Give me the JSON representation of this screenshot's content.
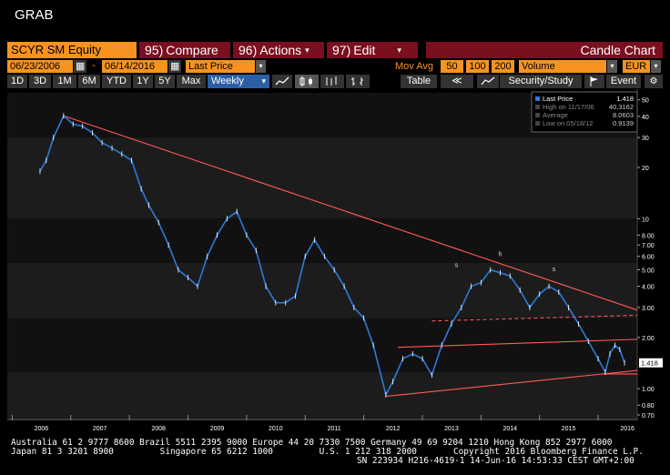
{
  "window": {
    "title": "GRAB"
  },
  "toolbar": {
    "ticker": "SCYR SM Equity",
    "compare": {
      "num": "95)",
      "label": "Compare"
    },
    "actions": {
      "num": "96)",
      "label": "Actions"
    },
    "edit": {
      "num": "97)",
      "label": "Edit"
    },
    "chart_title": "Candle Chart"
  },
  "settings": {
    "start_date": "06/23/2006",
    "end_date": "06/14/2016",
    "price_field": "Last Price",
    "mov_avg_label": "Mov Avg",
    "mov_avg": [
      "50",
      "100",
      "200"
    ],
    "volume": "Volume",
    "currency": "EUR"
  },
  "periods": [
    "1D",
    "3D",
    "1M",
    "6M",
    "YTD",
    "1Y",
    "5Y",
    "Max"
  ],
  "frequency": "Weekly",
  "tools": {
    "table": "Table",
    "security_study": "Security/Study",
    "event": "Event"
  },
  "legend": {
    "last_label": "Last Price",
    "last_value": "1.418",
    "high_label": "High on 11/17/06",
    "high_value": "40.3162",
    "avg_label": "Average",
    "avg_value": "8.0603",
    "low_label": "Low on 05/18/12",
    "low_value": "0.9139"
  },
  "chart_data": {
    "type": "line",
    "x_scale": "date",
    "y_scale": "log",
    "ylim": [
      0.65,
      55
    ],
    "xlim": [
      "2005-12-01",
      "2016-09-01"
    ],
    "yticks": [
      50,
      40,
      30,
      20,
      10,
      8.0,
      7.0,
      6.0,
      5.0,
      4.0,
      3.0,
      2.0,
      1.0,
      0.8,
      0.7
    ],
    "ytick_labels": [
      "50",
      "40",
      "30",
      "20",
      "10",
      "8.00",
      "7.00",
      "6.00",
      "5.00",
      "4.00",
      "3.00",
      "2.00",
      "1.00",
      "0.80",
      "0.70"
    ],
    "xtick_labels": [
      "2006",
      "2007",
      "2008",
      "2009",
      "2010",
      "2011",
      "2012",
      "2013",
      "2014",
      "2015",
      "2016"
    ],
    "last_price_tag": "1.418",
    "annotations": [
      "s",
      "h",
      "s"
    ],
    "series": [
      {
        "values": [
          [
            "2006-06-23",
            19.0
          ],
          [
            "2006-08-01",
            22.0
          ],
          [
            "2006-09-15",
            30.0
          ],
          [
            "2006-11-17",
            40.3
          ],
          [
            "2007-01-15",
            36.0
          ],
          [
            "2007-03-15",
            35.0
          ],
          [
            "2007-05-15",
            32.0
          ],
          [
            "2007-07-15",
            28.0
          ],
          [
            "2007-09-15",
            26.0
          ],
          [
            "2007-11-15",
            24.0
          ],
          [
            "2008-01-15",
            22.0
          ],
          [
            "2008-03-15",
            15.0
          ],
          [
            "2008-05-01",
            12.0
          ],
          [
            "2008-07-01",
            9.5
          ],
          [
            "2008-09-01",
            7.0
          ],
          [
            "2008-11-01",
            5.0
          ],
          [
            "2009-01-01",
            4.5
          ],
          [
            "2009-03-01",
            4.0
          ],
          [
            "2009-05-01",
            6.0
          ],
          [
            "2009-07-01",
            8.0
          ],
          [
            "2009-09-01",
            10.0
          ],
          [
            "2009-11-01",
            11.0
          ],
          [
            "2010-01-01",
            8.0
          ],
          [
            "2010-03-01",
            6.5
          ],
          [
            "2010-05-01",
            4.0
          ],
          [
            "2010-07-01",
            3.2
          ],
          [
            "2010-09-01",
            3.2
          ],
          [
            "2010-11-01",
            3.5
          ],
          [
            "2011-01-01",
            6.0
          ],
          [
            "2011-03-01",
            7.5
          ],
          [
            "2011-05-01",
            6.0
          ],
          [
            "2011-07-01",
            5.0
          ],
          [
            "2011-09-01",
            4.0
          ],
          [
            "2011-11-01",
            3.0
          ],
          [
            "2012-01-01",
            2.6
          ],
          [
            "2012-03-01",
            1.8
          ],
          [
            "2012-05-18",
            0.92
          ],
          [
            "2012-07-01",
            1.1
          ],
          [
            "2012-09-01",
            1.5
          ],
          [
            "2012-11-01",
            1.6
          ],
          [
            "2013-01-01",
            1.5
          ],
          [
            "2013-03-01",
            1.2
          ],
          [
            "2013-05-01",
            1.8
          ],
          [
            "2013-07-01",
            2.4
          ],
          [
            "2013-09-01",
            3.0
          ],
          [
            "2013-11-01",
            4.0
          ],
          [
            "2014-01-01",
            4.2
          ],
          [
            "2014-03-01",
            5.0
          ],
          [
            "2014-05-01",
            4.8
          ],
          [
            "2014-07-01",
            4.6
          ],
          [
            "2014-09-01",
            3.8
          ],
          [
            "2014-11-01",
            3.0
          ],
          [
            "2015-01-01",
            3.6
          ],
          [
            "2015-03-01",
            4.0
          ],
          [
            "2015-05-01",
            3.7
          ],
          [
            "2015-07-01",
            3.0
          ],
          [
            "2015-09-01",
            2.4
          ],
          [
            "2015-11-01",
            1.9
          ],
          [
            "2016-01-01",
            1.5
          ],
          [
            "2016-02-15",
            1.25
          ],
          [
            "2016-03-15",
            1.6
          ],
          [
            "2016-04-15",
            1.8
          ],
          [
            "2016-05-15",
            1.7
          ],
          [
            "2016-06-14",
            1.418
          ]
        ]
      }
    ],
    "trend_lines": [
      {
        "from": [
          "2006-11-17",
          40.3
        ],
        "to": [
          "2016-09-01",
          2.9
        ],
        "style": "solid"
      },
      {
        "from": [
          "2012-05-18",
          0.9
        ],
        "to": [
          "2016-09-01",
          1.28
        ],
        "style": "solid"
      },
      {
        "from": [
          "2012-08-01",
          1.75
        ],
        "to": [
          "2016-09-01",
          1.95
        ],
        "style": "solid"
      },
      {
        "from": [
          "2013-03-01",
          2.5
        ],
        "to": [
          "2016-09-01",
          2.7
        ],
        "style": "dashed"
      },
      {
        "from": [
          "2016-02-01",
          1.22
        ],
        "to": [
          "2016-09-01",
          1.22
        ],
        "style": "solid"
      }
    ],
    "colors": {
      "line": "#2b7bd6",
      "trend": "#ff5a5a",
      "band_dark": "#111111",
      "band_light": "#1c1c1c"
    }
  },
  "footer": {
    "line1": "Australia 61 2 9777 8600 Brazil 5511 2395 9000 Europe 44 20 7330 7500 Germany 49 69 9204 1210 Hong Kong 852 2977 6000",
    "line2a": "Japan 81 3 3201 8900         Singapore 65 6212 1000         U.S. 1 212 318 2000",
    "line2b": "Copyright 2016 Bloomberg Finance L.P.",
    "line3": "SN 223934 H216-4619-1 14-Jun-16 14:53:33 CEST GMT+2:00"
  }
}
